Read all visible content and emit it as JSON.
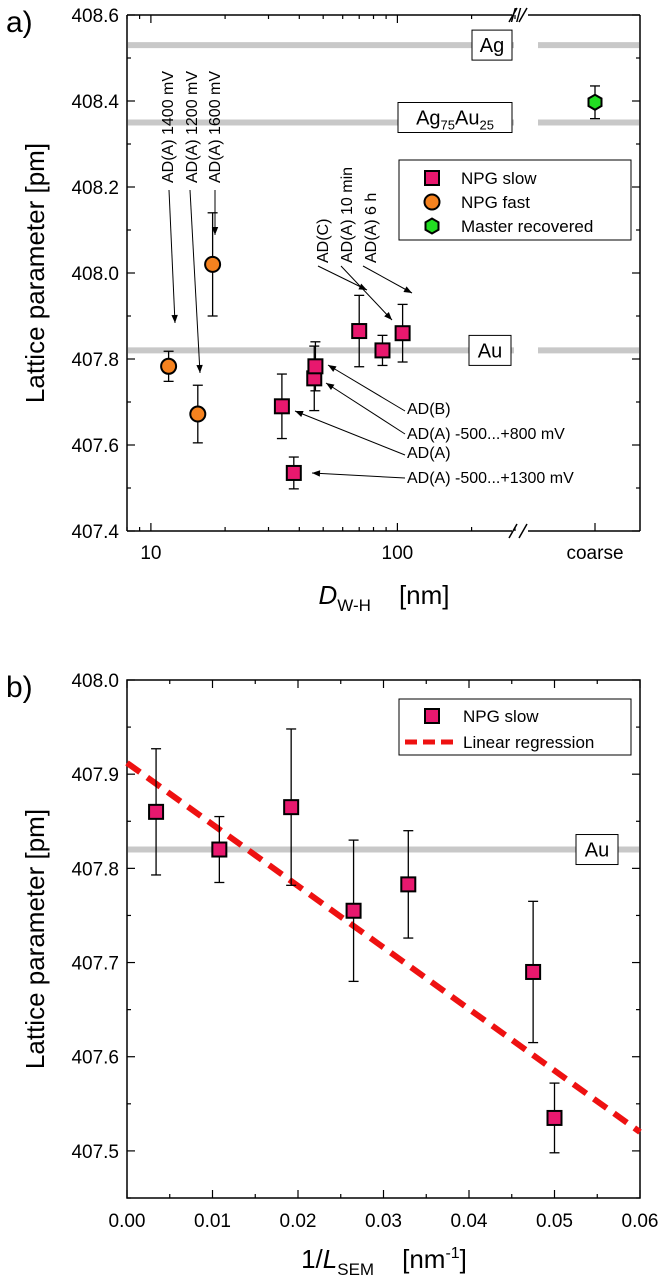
{
  "chart_data": [
    {
      "panel_label": "a)",
      "type": "scatter",
      "xlabel": {
        "main": "D",
        "sub": "W-H",
        "unit": "[nm]"
      },
      "ylabel": "Lattice parameter  [pm]",
      "x_scale": "log",
      "xlim": [
        8,
        300
      ],
      "ylim": [
        407.4,
        408.6
      ],
      "x_ticks": [
        10,
        100
      ],
      "x_extra_category": "coarse",
      "y_ticks": [
        "407.4",
        "407.6",
        "407.8",
        "408.0",
        "408.2",
        "408.4",
        "408.6"
      ],
      "axis_break": "//",
      "grid": false,
      "legend_position": "upper-right",
      "reference_lines": [
        {
          "name": "Ag",
          "y": 408.53,
          "label_html": "Ag"
        },
        {
          "name": "Ag75Au25",
          "y": 408.35,
          "label_parts": [
            "Ag",
            "75",
            "Au",
            "25"
          ]
        },
        {
          "name": "Au",
          "y": 407.82,
          "label_html": "Au"
        }
      ],
      "series": [
        {
          "name": "NPG slow",
          "marker": "square",
          "color": "#e8186e",
          "points": [
            {
              "x": 105,
              "y": 407.86,
              "err": 0.067
            },
            {
              "x": 87,
              "y": 407.82,
              "err": 0.035
            },
            {
              "x": 70,
              "y": 407.865,
              "err": 0.083
            },
            {
              "x": 46,
              "y": 407.755,
              "err": 0.075
            },
            {
              "x": 46.5,
              "y": 407.783,
              "err": 0.057
            },
            {
              "x": 34,
              "y": 407.69,
              "err": 0.075
            },
            {
              "x": 38,
              "y": 407.535,
              "err": 0.037
            }
          ]
        },
        {
          "name": "NPG fast",
          "marker": "circle",
          "color": "#f5821f",
          "points": [
            {
              "x": 11.8,
              "y": 407.783,
              "err": 0.035
            },
            {
              "x": 15.5,
              "y": 407.672,
              "err": 0.067
            },
            {
              "x": 17.8,
              "y": 408.02,
              "err": 0.12
            }
          ]
        },
        {
          "name": "Master recovered",
          "marker": "hexagon",
          "color": "#22dd22",
          "points": [
            {
              "x": "coarse",
              "y": 408.397,
              "err": 0.038
            }
          ]
        }
      ],
      "annotations": [
        "AD(A) 1400 mV",
        "AD(A) 1200 mV",
        "AD(A) 1600 mV",
        "AD(C)",
        "AD(A) 10 min",
        "AD(A) 6 h",
        "AD(B)",
        "AD(A) -500...+800 mV",
        "AD(A)",
        "AD(A) -500...+1300 mV"
      ]
    },
    {
      "panel_label": "b)",
      "type": "scatter",
      "xlabel": {
        "main": "1/L",
        "sub": "SEM",
        "unit": "[nm",
        "unit_sup": "-1",
        "unit_end": "]"
      },
      "ylabel": "Lattice parameter  [pm]",
      "xlim": [
        0.0,
        0.06
      ],
      "ylim": [
        407.45,
        408.0
      ],
      "x_ticks": [
        "0.00",
        "0.01",
        "0.02",
        "0.03",
        "0.04",
        "0.05",
        "0.06"
      ],
      "y_ticks": [
        "407.5",
        "407.6",
        "407.7",
        "407.8",
        "407.9",
        "408.0"
      ],
      "grid": false,
      "legend_position": "upper-right",
      "reference_lines": [
        {
          "name": "Au",
          "y": 407.82,
          "label_html": "Au"
        }
      ],
      "series": [
        {
          "name": "NPG slow",
          "marker": "square",
          "color": "#e8186e",
          "points": [
            {
              "x": 0.0034,
              "y": 407.86,
              "err": 0.067
            },
            {
              "x": 0.0108,
              "y": 407.82,
              "err": 0.035
            },
            {
              "x": 0.0192,
              "y": 407.865,
              "err": 0.083
            },
            {
              "x": 0.0265,
              "y": 407.755,
              "err": 0.075
            },
            {
              "x": 0.0329,
              "y": 407.783,
              "err": 0.057
            },
            {
              "x": 0.0475,
              "y": 407.69,
              "err": 0.075
            },
            {
              "x": 0.05,
              "y": 407.535,
              "err": 0.037
            }
          ]
        },
        {
          "name": "Linear regression",
          "type": "line",
          "style": "dashed",
          "color": "#ee1111",
          "x": [
            0.0,
            0.06
          ],
          "y": [
            407.912,
            407.52
          ]
        }
      ]
    }
  ]
}
